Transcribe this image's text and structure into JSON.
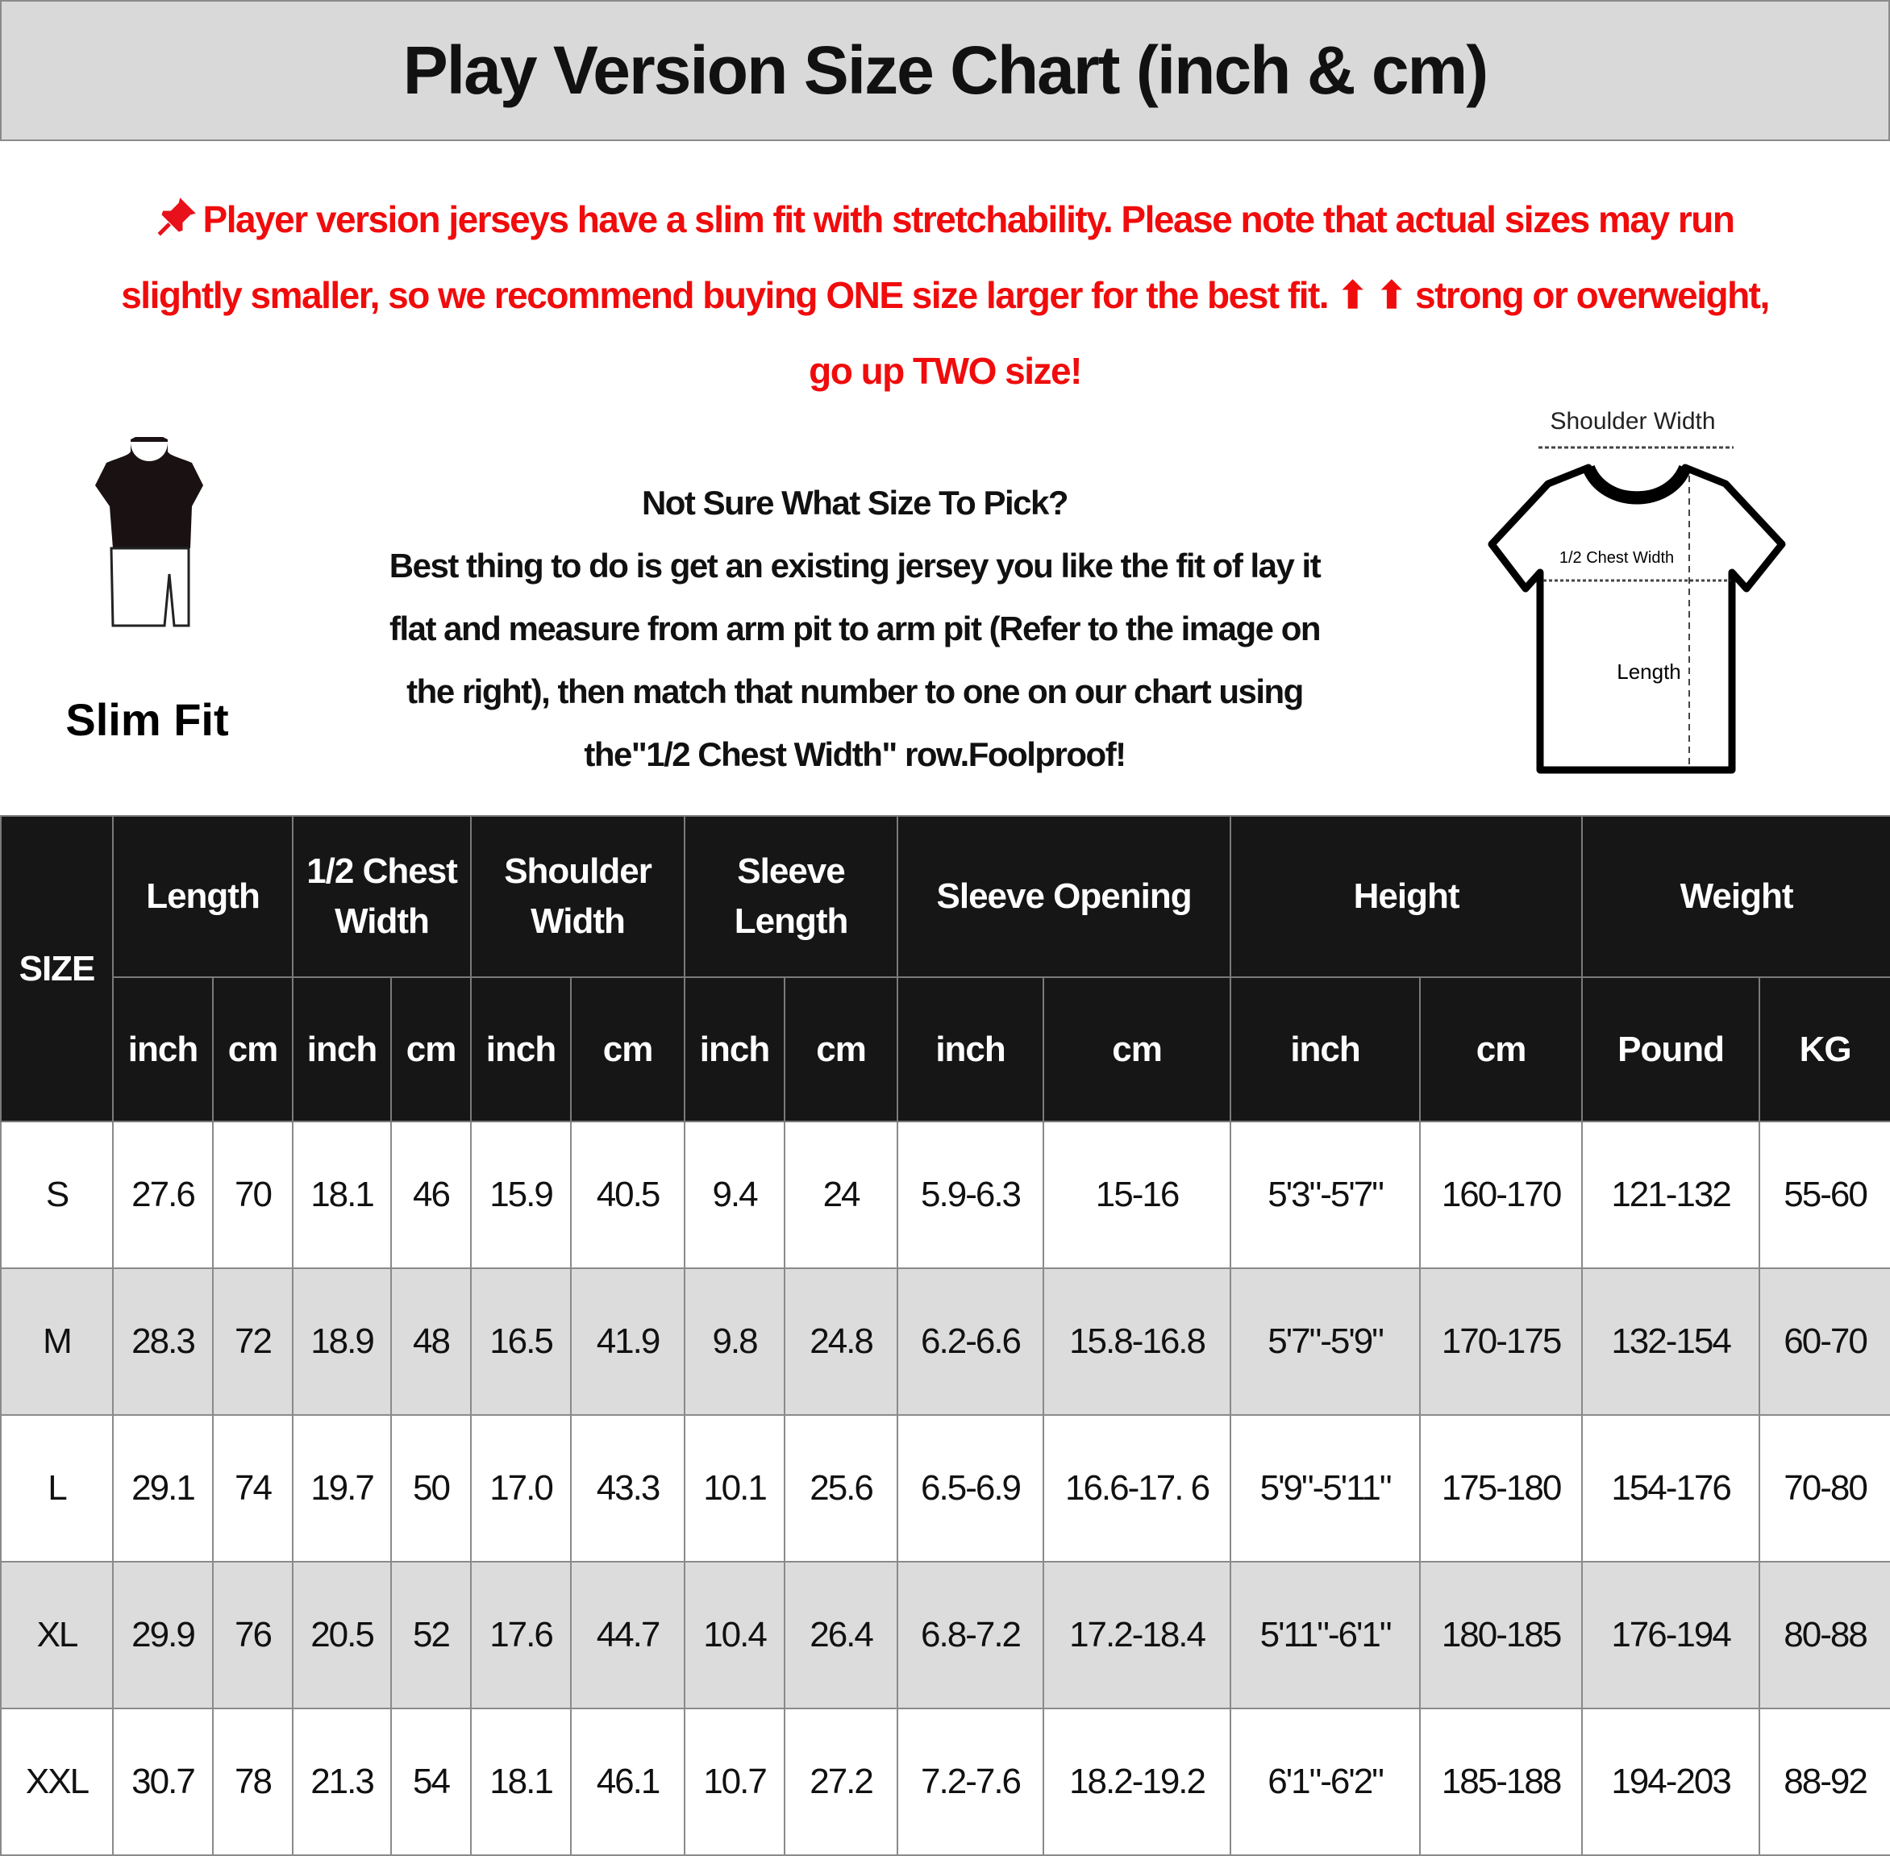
{
  "title": "Play Version Size Chart (inch & cm)",
  "notice": {
    "pin_icon": "pushpin-icon",
    "line1": "Player version jerseys have a slim fit with stretchability. Please note that actual sizes may run",
    "line2a": "slightly smaller, so we recommend buying ONE size larger for the best fit.",
    "arrows": "⬆ ⬆",
    "line2b": "strong or overweight,",
    "line3": "go up TWO size!",
    "color": "#f00c0c"
  },
  "slim_fit": {
    "label": "Slim Fit",
    "icon": "slim-fit-mannequin-icon"
  },
  "guide": {
    "heading": "Not Sure What Size To Pick?",
    "lines": [
      "Best thing to do is get an existing jersey you like the fit of lay it",
      "flat and measure from arm pit to arm pit (Refer to the image on",
      "the right), then match that number to one on our chart using",
      "the\"1/2 Chest Width\" row.Foolproof!"
    ]
  },
  "diagram": {
    "shoulder": "Shoulder Width",
    "chest": "1/2 Chest Width",
    "length": "Length"
  },
  "table": {
    "size_header": "SIZE",
    "groups": [
      {
        "l1": "Length",
        "l2": ""
      },
      {
        "l1": "1/2 Chest",
        "l2": "Width"
      },
      {
        "l1": "Shoulder",
        "l2": "Width"
      },
      {
        "l1": "Sleeve",
        "l2": "Length"
      },
      {
        "l1": "Sleeve Opening",
        "l2": ""
      },
      {
        "l1": "Height",
        "l2": ""
      },
      {
        "l1": "Weight",
        "l2": ""
      }
    ],
    "units": [
      "inch",
      "cm",
      "inch",
      "cm",
      "inch",
      "cm",
      "inch",
      "cm",
      "inch",
      "cm",
      "inch",
      "cm",
      "Pound",
      "KG"
    ],
    "rows": [
      [
        "S",
        "27.6",
        "70",
        "18.1",
        "46",
        "15.9",
        "40.5",
        "9.4",
        "24",
        "5.9-6.3",
        "15-16",
        "5'3\"-5'7\"",
        "160-170",
        "121-132",
        "55-60"
      ],
      [
        "M",
        "28.3",
        "72",
        "18.9",
        "48",
        "16.5",
        "41.9",
        "9.8",
        "24.8",
        "6.2-6.6",
        "15.8-16.8",
        "5'7\"-5'9\"",
        "170-175",
        "132-154",
        "60-70"
      ],
      [
        "L",
        "29.1",
        "74",
        "19.7",
        "50",
        "17.0",
        "43.3",
        "10.1",
        "25.6",
        "6.5-6.9",
        "16.6-17. 6",
        "5'9\"-5'11\"",
        "175-180",
        "154-176",
        "70-80"
      ],
      [
        "XL",
        "29.9",
        "76",
        "20.5",
        "52",
        "17.6",
        "44.7",
        "10.4",
        "26.4",
        "6.8-7.2",
        "17.2-18.4",
        "5'11\"-6'1\"",
        "180-185",
        "176-194",
        "80-88"
      ],
      [
        "XXL",
        "30.7",
        "78",
        "21.3",
        "54",
        "18.1",
        "46.1",
        "10.7",
        "27.2",
        "7.2-7.6",
        "18.2-19.2",
        "6'1\"-6'2\"",
        "185-188",
        "194-203",
        "88-92"
      ]
    ]
  }
}
